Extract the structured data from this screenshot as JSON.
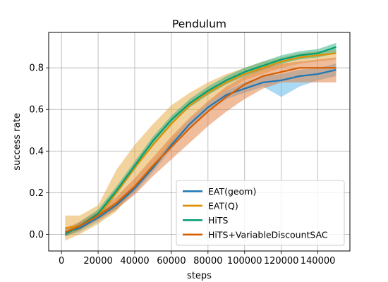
{
  "chart_data": {
    "type": "line",
    "title": "Pendulum",
    "xlabel": "steps",
    "ylabel": "success rate",
    "xlim": [
      -7000,
      157500
    ],
    "ylim": [
      -0.08,
      0.97
    ],
    "xticks": [
      0,
      20000,
      40000,
      60000,
      80000,
      100000,
      120000,
      140000
    ],
    "yticks": [
      0.0,
      0.2,
      0.4,
      0.6,
      0.8
    ],
    "grid": true,
    "legend_position": "lower-right",
    "x": [
      2000,
      10000,
      20000,
      30000,
      40000,
      50000,
      60000,
      70000,
      80000,
      90000,
      100000,
      110000,
      120000,
      130000,
      140000,
      150000
    ],
    "series": [
      {
        "name": "EAT(geom)",
        "color": "#1f77b4",
        "band_color": "#56b4e9",
        "values": [
          0.01,
          0.03,
          0.08,
          0.14,
          0.22,
          0.32,
          0.43,
          0.53,
          0.61,
          0.67,
          0.7,
          0.73,
          0.74,
          0.76,
          0.77,
          0.79
        ],
        "lower": [
          -0.01,
          0.01,
          0.06,
          0.12,
          0.2,
          0.3,
          0.41,
          0.51,
          0.59,
          0.65,
          0.68,
          0.71,
          0.66,
          0.71,
          0.74,
          0.76
        ],
        "upper": [
          0.03,
          0.05,
          0.1,
          0.16,
          0.24,
          0.34,
          0.45,
          0.55,
          0.63,
          0.69,
          0.73,
          0.76,
          0.77,
          0.79,
          0.8,
          0.82
        ]
      },
      {
        "name": "EAT(Q)",
        "color": "#de8f05",
        "band_color": "#e6a73d",
        "values": [
          0.03,
          0.04,
          0.09,
          0.2,
          0.32,
          0.43,
          0.53,
          0.62,
          0.68,
          0.73,
          0.77,
          0.8,
          0.83,
          0.85,
          0.86,
          0.87
        ],
        "lower": [
          -0.03,
          0.0,
          0.05,
          0.11,
          0.22,
          0.32,
          0.44,
          0.55,
          0.63,
          0.69,
          0.74,
          0.77,
          0.8,
          0.82,
          0.83,
          0.84
        ],
        "upper": [
          0.09,
          0.09,
          0.14,
          0.31,
          0.43,
          0.53,
          0.62,
          0.68,
          0.73,
          0.77,
          0.8,
          0.83,
          0.85,
          0.87,
          0.88,
          0.89
        ]
      },
      {
        "name": "HiTS",
        "color": "#029e73",
        "band_color": "#2ab07f",
        "values": [
          0.0,
          0.04,
          0.1,
          0.21,
          0.33,
          0.45,
          0.55,
          0.63,
          0.69,
          0.74,
          0.78,
          0.81,
          0.84,
          0.86,
          0.87,
          0.9
        ],
        "lower": [
          -0.01,
          0.02,
          0.08,
          0.19,
          0.31,
          0.43,
          0.53,
          0.61,
          0.67,
          0.72,
          0.76,
          0.79,
          0.82,
          0.84,
          0.85,
          0.87
        ],
        "upper": [
          0.01,
          0.06,
          0.12,
          0.23,
          0.35,
          0.47,
          0.57,
          0.65,
          0.71,
          0.76,
          0.8,
          0.83,
          0.86,
          0.88,
          0.89,
          0.92
        ]
      },
      {
        "name": "HiTS+VariableDiscountSAC",
        "color": "#d55e00",
        "band_color": "#e07a3a",
        "values": [
          0.01,
          0.04,
          0.09,
          0.15,
          0.23,
          0.33,
          0.42,
          0.51,
          0.59,
          0.66,
          0.72,
          0.76,
          0.78,
          0.8,
          0.8,
          0.8
        ],
        "lower": [
          -0.01,
          0.02,
          0.07,
          0.12,
          0.19,
          0.28,
          0.36,
          0.44,
          0.52,
          0.59,
          0.65,
          0.7,
          0.73,
          0.73,
          0.73,
          0.73
        ],
        "upper": [
          0.03,
          0.06,
          0.11,
          0.18,
          0.27,
          0.37,
          0.47,
          0.56,
          0.64,
          0.71,
          0.76,
          0.8,
          0.82,
          0.83,
          0.84,
          0.85
        ]
      }
    ]
  }
}
